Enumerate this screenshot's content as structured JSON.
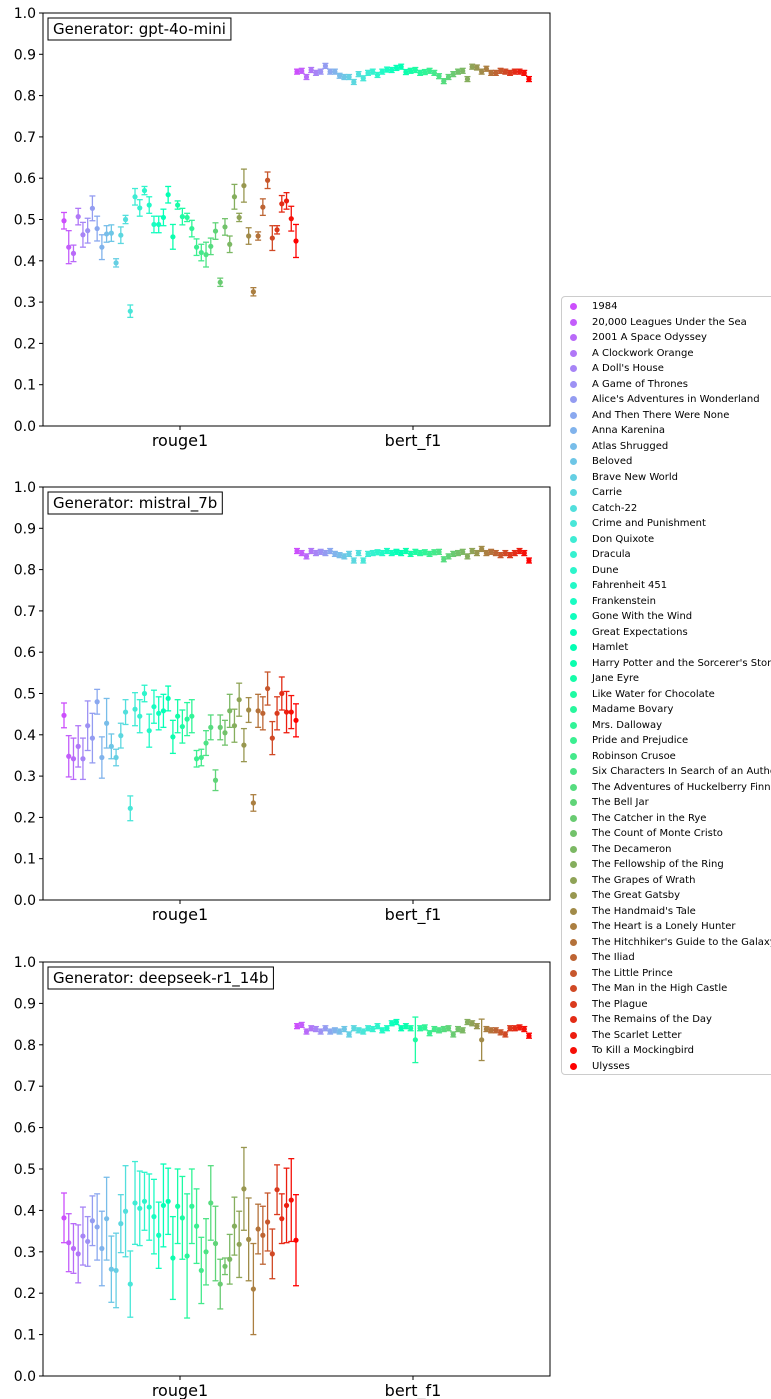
{
  "books": [
    "1984",
    "20,000 Leagues Under the Sea",
    "2001 A Space Odyssey",
    "A Clockwork Orange",
    "A Doll's House",
    "A Game of Thrones",
    "Alice's Adventures in Wonderland",
    "And Then There Were None",
    "Anna Karenina",
    "Atlas Shrugged",
    "Beloved",
    "Brave New World",
    "Carrie",
    "Catch-22",
    "Crime and Punishment",
    "Don Quixote",
    "Dracula",
    "Dune",
    "Fahrenheit 451",
    "Frankenstein",
    "Gone With the Wind",
    "Great Expectations",
    "Hamlet",
    "Harry Potter and the Sorcerer's Stone",
    "Jane Eyre",
    "Like Water for Chocolate",
    "Madame Bovary",
    "Mrs. Dalloway",
    "Pride and Prejudice",
    "Robinson Crusoe",
    "Six Characters In Search of an Author",
    "The Adventures of Huckelberry Finn",
    "The Bell Jar",
    "The Catcher in the Rye",
    "The Count of Monte Cristo",
    "The Decameron",
    "The Fellowship of the Ring",
    "The Grapes of Wrath",
    "The Great Gatsby",
    "The Handmaid's Tale",
    "The Heart is a Lonely Hunter",
    "The Hitchhiker's Guide to the Galaxy",
    "The Iliad",
    "The Little Prince",
    "The Man in the High Castle",
    "The Plague",
    "The Remains of the Day",
    "The Scarlet Letter",
    "To Kill a Mockingbird",
    "Ulysses"
  ],
  "chart_data": [
    {
      "type": "scatter",
      "title": "Generator: gpt-4o-mini",
      "categories": [
        "rouge1",
        "bert_f1"
      ],
      "ylim": [
        0.0,
        1.0
      ],
      "yticks": [
        "0.0",
        "0.1",
        "0.2",
        "0.3",
        "0.4",
        "0.5",
        "0.6",
        "0.7",
        "0.8",
        "0.9",
        "1.0"
      ],
      "rouge1_mean": [
        0.497,
        0.433,
        0.418,
        0.507,
        0.463,
        0.473,
        0.527,
        0.478,
        0.433,
        0.465,
        0.467,
        0.395,
        0.462,
        0.5,
        0.278,
        0.555,
        0.528,
        0.57,
        0.535,
        0.488,
        0.488,
        0.505,
        0.56,
        0.458,
        0.535,
        0.507,
        0.505,
        0.478,
        0.433,
        0.42,
        0.415,
        0.435,
        0.472,
        0.348,
        0.482,
        0.44,
        0.555,
        0.505,
        0.582,
        0.46,
        0.325,
        0.46,
        0.53,
        0.595,
        0.455,
        0.475,
        0.538,
        0.545,
        0.502,
        0.448
      ],
      "rouge1_err": [
        0.02,
        0.04,
        0.02,
        0.02,
        0.03,
        0.03,
        0.03,
        0.03,
        0.03,
        0.02,
        0.02,
        0.01,
        0.02,
        0.01,
        0.015,
        0.02,
        0.02,
        0.01,
        0.02,
        0.02,
        0.02,
        0.02,
        0.02,
        0.03,
        0.01,
        0.02,
        0.01,
        0.02,
        0.02,
        0.02,
        0.03,
        0.02,
        0.02,
        0.01,
        0.02,
        0.02,
        0.03,
        0.01,
        0.04,
        0.02,
        0.01,
        0.01,
        0.02,
        0.02,
        0.03,
        0.01,
        0.02,
        0.02,
        0.03,
        0.04
      ],
      "bert_mean": [
        0.858,
        0.86,
        0.845,
        0.862,
        0.855,
        0.858,
        0.872,
        0.858,
        0.858,
        0.848,
        0.845,
        0.845,
        0.833,
        0.852,
        0.842,
        0.855,
        0.858,
        0.85,
        0.858,
        0.863,
        0.862,
        0.867,
        0.87,
        0.857,
        0.86,
        0.862,
        0.855,
        0.857,
        0.86,
        0.855,
        0.847,
        0.835,
        0.845,
        0.852,
        0.858,
        0.86,
        0.84,
        0.87,
        0.868,
        0.858,
        0.865,
        0.855,
        0.855,
        0.86,
        0.858,
        0.855,
        0.858,
        0.858,
        0.855,
        0.84
      ],
      "bert_err": [
        0.006,
        0.006,
        0.006,
        0.006,
        0.006,
        0.006,
        0.006,
        0.006,
        0.006,
        0.006,
        0.006,
        0.006,
        0.006,
        0.006,
        0.006,
        0.006,
        0.006,
        0.006,
        0.006,
        0.006,
        0.006,
        0.006,
        0.006,
        0.006,
        0.006,
        0.006,
        0.006,
        0.006,
        0.006,
        0.006,
        0.006,
        0.006,
        0.006,
        0.006,
        0.006,
        0.006,
        0.006,
        0.006,
        0.006,
        0.006,
        0.006,
        0.006,
        0.006,
        0.006,
        0.006,
        0.006,
        0.006,
        0.006,
        0.006,
        0.006
      ]
    },
    {
      "type": "scatter",
      "title": "Generator: mistral_7b",
      "categories": [
        "rouge1",
        "bert_f1"
      ],
      "ylim": [
        0.0,
        1.0
      ],
      "yticks": [
        "0.0",
        "0.1",
        "0.2",
        "0.3",
        "0.4",
        "0.5",
        "0.6",
        "0.7",
        "0.8",
        "0.9",
        "1.0"
      ],
      "rouge1_mean": [
        0.447,
        0.348,
        0.342,
        0.372,
        0.342,
        0.422,
        0.392,
        0.48,
        0.345,
        0.428,
        0.372,
        0.345,
        0.398,
        0.455,
        0.222,
        0.462,
        0.445,
        0.5,
        0.41,
        0.468,
        0.452,
        0.458,
        0.488,
        0.395,
        0.445,
        0.42,
        0.438,
        0.445,
        0.342,
        0.345,
        0.38,
        0.418,
        0.29,
        0.418,
        0.405,
        0.458,
        0.422,
        0.485,
        0.375,
        0.46,
        0.235,
        0.458,
        0.452,
        0.512,
        0.392,
        0.452,
        0.5,
        0.455,
        0.455,
        0.435
      ],
      "rouge1_err": [
        0.03,
        0.05,
        0.05,
        0.05,
        0.05,
        0.06,
        0.06,
        0.03,
        0.05,
        0.06,
        0.03,
        0.02,
        0.03,
        0.03,
        0.03,
        0.04,
        0.04,
        0.02,
        0.04,
        0.04,
        0.04,
        0.04,
        0.03,
        0.04,
        0.04,
        0.04,
        0.04,
        0.04,
        0.02,
        0.02,
        0.03,
        0.03,
        0.025,
        0.03,
        0.03,
        0.04,
        0.04,
        0.04,
        0.04,
        0.03,
        0.02,
        0.04,
        0.04,
        0.04,
        0.04,
        0.04,
        0.04,
        0.05,
        0.04,
        0.04
      ],
      "bert_mean": [
        0.845,
        0.84,
        0.832,
        0.845,
        0.84,
        0.843,
        0.84,
        0.845,
        0.838,
        0.835,
        0.832,
        0.838,
        0.822,
        0.84,
        0.822,
        0.838,
        0.84,
        0.842,
        0.84,
        0.845,
        0.84,
        0.843,
        0.84,
        0.845,
        0.838,
        0.843,
        0.84,
        0.842,
        0.838,
        0.842,
        0.843,
        0.825,
        0.832,
        0.838,
        0.84,
        0.843,
        0.832,
        0.845,
        0.84,
        0.85,
        0.84,
        0.843,
        0.84,
        0.835,
        0.84,
        0.835,
        0.84,
        0.845,
        0.84,
        0.822
      ],
      "bert_err": [
        0.006,
        0.006,
        0.006,
        0.006,
        0.006,
        0.006,
        0.006,
        0.006,
        0.006,
        0.006,
        0.006,
        0.006,
        0.006,
        0.006,
        0.006,
        0.006,
        0.006,
        0.006,
        0.006,
        0.006,
        0.006,
        0.006,
        0.006,
        0.006,
        0.006,
        0.006,
        0.006,
        0.006,
        0.006,
        0.006,
        0.006,
        0.006,
        0.006,
        0.006,
        0.006,
        0.006,
        0.006,
        0.006,
        0.006,
        0.006,
        0.006,
        0.006,
        0.006,
        0.006,
        0.006,
        0.006,
        0.006,
        0.006,
        0.006,
        0.006
      ]
    },
    {
      "type": "scatter",
      "title": "Generator: deepseek-r1_14b",
      "categories": [
        "rouge1",
        "bert_f1"
      ],
      "ylim": [
        0.0,
        1.0
      ],
      "yticks": [
        "0.0",
        "0.1",
        "0.2",
        "0.3",
        "0.4",
        "0.5",
        "0.6",
        "0.7",
        "0.8",
        "0.9",
        "1.0"
      ],
      "rouge1_mean": [
        0.382,
        0.322,
        0.308,
        0.295,
        0.338,
        0.325,
        0.375,
        0.36,
        0.308,
        0.38,
        0.258,
        0.255,
        0.368,
        0.398,
        0.222,
        0.418,
        0.405,
        0.422,
        0.408,
        0.385,
        0.34,
        0.412,
        0.422,
        0.285,
        0.41,
        0.382,
        0.29,
        0.41,
        0.362,
        0.255,
        0.3,
        0.418,
        0.32,
        0.222,
        0.265,
        0.282,
        0.362,
        0.318,
        0.452,
        0.33,
        0.21,
        0.355,
        0.34,
        0.372,
        0.295,
        0.45,
        0.38,
        0.412,
        0.425,
        0.328
      ],
      "rouge1_err": [
        0.06,
        0.07,
        0.06,
        0.07,
        0.07,
        0.06,
        0.06,
        0.08,
        0.09,
        0.1,
        0.08,
        0.09,
        0.07,
        0.11,
        0.08,
        0.1,
        0.09,
        0.07,
        0.08,
        0.09,
        0.08,
        0.1,
        0.08,
        0.1,
        0.09,
        0.1,
        0.15,
        0.09,
        0.09,
        0.08,
        0.08,
        0.09,
        0.09,
        0.06,
        0.02,
        0.06,
        0.07,
        0.08,
        0.1,
        0.1,
        0.11,
        0.06,
        0.07,
        0.07,
        0.06,
        0.06,
        0.06,
        0.09,
        0.1,
        0.11
      ],
      "bert_mean": [
        0.845,
        0.848,
        0.832,
        0.84,
        0.838,
        0.832,
        0.84,
        0.832,
        0.835,
        0.832,
        0.838,
        0.825,
        0.84,
        0.835,
        0.832,
        0.84,
        0.838,
        0.845,
        0.835,
        0.84,
        0.852,
        0.855,
        0.84,
        0.845,
        0.84,
        0.812,
        0.84,
        0.842,
        0.828,
        0.838,
        0.835,
        0.838,
        0.84,
        0.825,
        0.838,
        0.835,
        0.855,
        0.852,
        0.845,
        0.812,
        0.838,
        0.835,
        0.835,
        0.83,
        0.825,
        0.84,
        0.84,
        0.842,
        0.838,
        0.822
      ],
      "bert_err": [
        0.006,
        0.006,
        0.006,
        0.006,
        0.006,
        0.006,
        0.006,
        0.006,
        0.006,
        0.006,
        0.006,
        0.006,
        0.006,
        0.006,
        0.006,
        0.006,
        0.006,
        0.006,
        0.006,
        0.006,
        0.006,
        0.006,
        0.006,
        0.006,
        0.006,
        0.055,
        0.006,
        0.006,
        0.006,
        0.006,
        0.006,
        0.006,
        0.006,
        0.006,
        0.006,
        0.006,
        0.006,
        0.006,
        0.006,
        0.05,
        0.006,
        0.006,
        0.006,
        0.006,
        0.006,
        0.006,
        0.006,
        0.006,
        0.006,
        0.006
      ]
    }
  ]
}
